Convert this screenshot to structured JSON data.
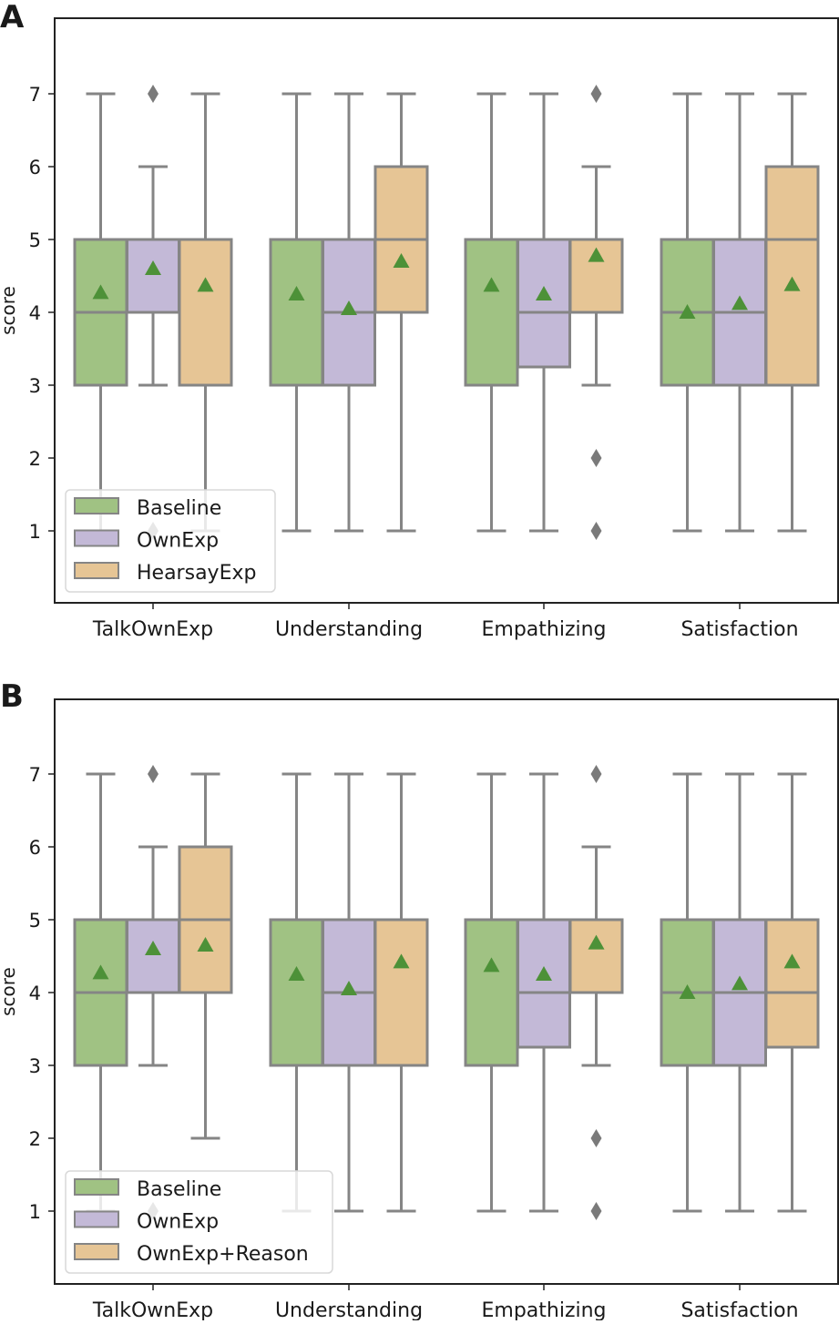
{
  "colors": {
    "Baseline": "#a0c283",
    "OwnExp": "#c3b9d7",
    "Third": "#e6c595",
    "line": "#858585",
    "mean": "#4d9138"
  },
  "chart_data": [
    {
      "panel_label": "A",
      "type": "box",
      "ylabel": "score",
      "ylim": [
        0,
        8
      ],
      "yticks": [
        1,
        2,
        3,
        4,
        5,
        6,
        7
      ],
      "categories": [
        "TalkOwnExp",
        "Understanding",
        "Empathizing",
        "Satisfaction"
      ],
      "legend": [
        "Baseline",
        "OwnExp",
        "HearsayExp"
      ],
      "legend_position": "lower-left",
      "series": [
        {
          "name": "Baseline",
          "boxes": [
            {
              "whislo": 1,
              "q1": 3,
              "med": 4,
              "q3": 5,
              "whishi": 7,
              "mean": 4.27,
              "fliers": []
            },
            {
              "whislo": 1,
              "q1": 3,
              "med": 5,
              "q3": 5,
              "whishi": 7,
              "mean": 4.25,
              "fliers": []
            },
            {
              "whislo": 1,
              "q1": 3,
              "med": 5,
              "q3": 5,
              "whishi": 7,
              "mean": 4.37,
              "fliers": []
            },
            {
              "whislo": 1,
              "q1": 3,
              "med": 4,
              "q3": 5,
              "whishi": 7,
              "mean": 4.0,
              "fliers": []
            }
          ]
        },
        {
          "name": "OwnExp",
          "boxes": [
            {
              "whislo": 3,
              "q1": 4,
              "med": 4,
              "q3": 5,
              "whishi": 6,
              "mean": 4.6,
              "fliers": [
                7,
                1
              ]
            },
            {
              "whislo": 1,
              "q1": 3,
              "med": 4,
              "q3": 5,
              "whishi": 7,
              "mean": 4.05,
              "fliers": []
            },
            {
              "whislo": 1,
              "q1": 3.25,
              "med": 4,
              "q3": 5,
              "whishi": 7,
              "mean": 4.25,
              "fliers": []
            },
            {
              "whislo": 1,
              "q1": 3,
              "med": 4,
              "q3": 5,
              "whishi": 7,
              "mean": 4.12,
              "fliers": []
            }
          ]
        },
        {
          "name": "HearsayExp",
          "boxes": [
            {
              "whislo": 1,
              "q1": 3,
              "med": 5,
              "q3": 5,
              "whishi": 7,
              "mean": 4.37,
              "fliers": []
            },
            {
              "whislo": 1,
              "q1": 4,
              "med": 5,
              "q3": 6,
              "whishi": 7,
              "mean": 4.7,
              "fliers": []
            },
            {
              "whislo": 3,
              "q1": 4,
              "med": 5,
              "q3": 5,
              "whishi": 6,
              "mean": 4.78,
              "fliers": [
                7,
                2,
                1
              ]
            },
            {
              "whislo": 1,
              "q1": 3,
              "med": 5,
              "q3": 6,
              "whishi": 7,
              "mean": 4.38,
              "fliers": []
            }
          ]
        }
      ]
    },
    {
      "panel_label": "B",
      "type": "box",
      "ylabel": "score",
      "ylim": [
        0,
        8
      ],
      "yticks": [
        1,
        2,
        3,
        4,
        5,
        6,
        7
      ],
      "categories": [
        "TalkOwnExp",
        "Understanding",
        "Empathizing",
        "Satisfaction"
      ],
      "legend": [
        "Baseline",
        "OwnExp",
        "OwnExp+Reason"
      ],
      "legend_position": "lower-left",
      "series": [
        {
          "name": "Baseline",
          "boxes": [
            {
              "whislo": 1,
              "q1": 3,
              "med": 4,
              "q3": 5,
              "whishi": 7,
              "mean": 4.27,
              "fliers": []
            },
            {
              "whislo": 1,
              "q1": 3,
              "med": 5,
              "q3": 5,
              "whishi": 7,
              "mean": 4.25,
              "fliers": []
            },
            {
              "whislo": 1,
              "q1": 3,
              "med": 5,
              "q3": 5,
              "whishi": 7,
              "mean": 4.37,
              "fliers": []
            },
            {
              "whislo": 1,
              "q1": 3,
              "med": 4,
              "q3": 5,
              "whishi": 7,
              "mean": 4.0,
              "fliers": []
            }
          ]
        },
        {
          "name": "OwnExp",
          "boxes": [
            {
              "whislo": 3,
              "q1": 4,
              "med": 4,
              "q3": 5,
              "whishi": 6,
              "mean": 4.6,
              "fliers": [
                7,
                1
              ]
            },
            {
              "whislo": 1,
              "q1": 3,
              "med": 4,
              "q3": 5,
              "whishi": 7,
              "mean": 4.05,
              "fliers": []
            },
            {
              "whislo": 1,
              "q1": 3.25,
              "med": 4,
              "q3": 5,
              "whishi": 7,
              "mean": 4.25,
              "fliers": []
            },
            {
              "whislo": 1,
              "q1": 3,
              "med": 4,
              "q3": 5,
              "whishi": 7,
              "mean": 4.12,
              "fliers": []
            }
          ]
        },
        {
          "name": "OwnExp+Reason",
          "boxes": [
            {
              "whislo": 2,
              "q1": 4,
              "med": 5,
              "q3": 6,
              "whishi": 7,
              "mean": 4.65,
              "fliers": []
            },
            {
              "whislo": 1,
              "q1": 3,
              "med": 5,
              "q3": 5,
              "whishi": 7,
              "mean": 4.42,
              "fliers": []
            },
            {
              "whislo": 3,
              "q1": 4,
              "med": 5,
              "q3": 5,
              "whishi": 6,
              "mean": 4.68,
              "fliers": [
                7,
                2,
                1
              ]
            },
            {
              "whislo": 1,
              "q1": 3.25,
              "med": 4,
              "q3": 5,
              "whishi": 7,
              "mean": 4.42,
              "fliers": []
            }
          ]
        }
      ]
    }
  ]
}
